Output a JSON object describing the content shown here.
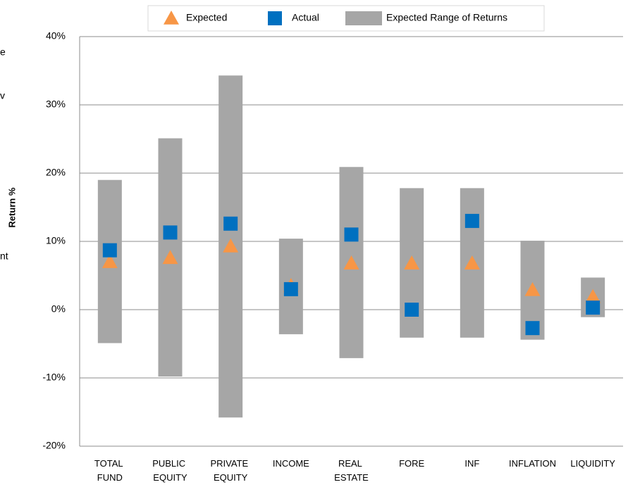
{
  "chart_data": {
    "type": "range-dot",
    "y_label": "Return %",
    "annotations": [
      "e",
      "v",
      "nt"
    ],
    "categories": [
      "TOTAL FUND",
      "PUBLIC EQUITY",
      "PRIVATE EQUITY",
      "INCOME",
      "REAL ESTATE",
      "FORE",
      "INF",
      "INFLATION",
      "LIQUIDITY"
    ],
    "ylim": [
      -20,
      40
    ],
    "yticks": [
      {
        "value": -20,
        "label": "-20%"
      },
      {
        "value": -10,
        "label": "-10%"
      },
      {
        "value": 0,
        "label": "0%"
      },
      {
        "value": 10,
        "label": "10%"
      },
      {
        "value": 20,
        "label": "20%"
      },
      {
        "value": 30,
        "label": "30%"
      },
      {
        "value": 40,
        "label": "40%"
      }
    ],
    "grid": true,
    "range": {
      "name": "Expected Range of Returns",
      "color": "#a6a6a6",
      "low": [
        -4.9,
        -9.8,
        -15.8,
        -3.6,
        -7.1,
        -4.1,
        -4.1,
        -4.4,
        -1.1
      ],
      "high": [
        19.0,
        25.1,
        34.3,
        10.4,
        20.9,
        17.8,
        17.8,
        10.1,
        4.7
      ]
    },
    "series": [
      {
        "name": "Expected",
        "color": "#f79646",
        "marker": "triangle",
        "values": [
          7.0,
          7.6,
          9.3,
          3.5,
          6.8,
          6.8,
          6.8,
          2.9,
          1.9
        ]
      },
      {
        "name": "Actual",
        "color": "#0070c0",
        "marker": "square",
        "values": [
          8.7,
          11.3,
          12.6,
          3.0,
          11.0,
          0.0,
          13.0,
          -2.7,
          0.3
        ]
      }
    ],
    "legend": "top"
  }
}
